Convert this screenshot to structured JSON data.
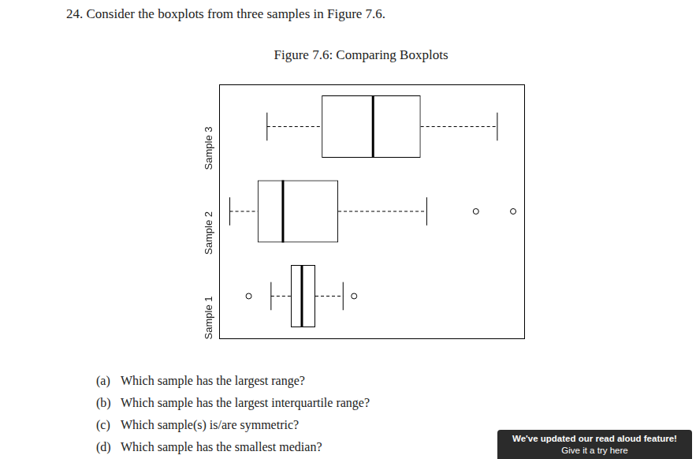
{
  "question": {
    "number": "24.",
    "text": "Consider the boxplots from three samples in Figure 7.6."
  },
  "chart_data": {
    "type": "boxplot",
    "title": "Figure 7.6: Comparing Boxplots",
    "orientation": "horizontal",
    "categories": [
      "Sample 1",
      "Sample 2",
      "Sample 3"
    ],
    "samples": [
      {
        "name": "Sample 1",
        "whisker_low": 17.1,
        "q1": 23.6,
        "median": 27.2,
        "q3": 31.6,
        "whisker_high": 40.7,
        "outliers": [
          9.8,
          44.3
        ]
      },
      {
        "name": "Sample 2",
        "whisker_low": 3.6,
        "q1": 12.7,
        "median": 21.0,
        "q3": 39.1,
        "whisker_high": 68.1,
        "outliers": [
          84.2,
          96.4
        ]
      },
      {
        "name": "Sample 3",
        "whisker_low": 15.8,
        "q1": 33.7,
        "median": 50.5,
        "q3": 66.1,
        "whisker_high": 91.2,
        "outliers": []
      }
    ],
    "color": "#000000",
    "xlim": [
      0,
      100
    ],
    "tick_labels": "y",
    "grid": false
  },
  "parts": [
    {
      "label": "(a)",
      "text": "Which sample has the largest range?"
    },
    {
      "label": "(b)",
      "text": "Which sample has the largest interquartile range?"
    },
    {
      "label": "(c)",
      "text": "Which sample(s) is/are symmetric?"
    },
    {
      "label": "(d)",
      "text": "Which sample has the smallest median?"
    }
  ],
  "notice": {
    "text": "We've updated our read aloud feature!",
    "link": "Give it a try here"
  }
}
